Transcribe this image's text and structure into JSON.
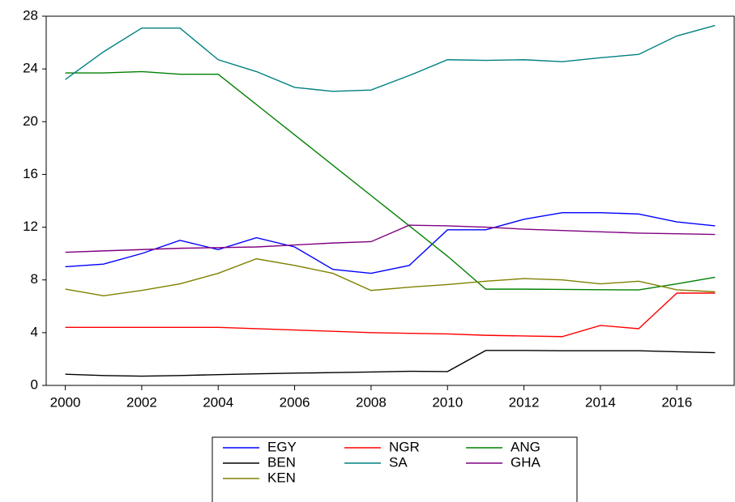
{
  "chart_data": {
    "type": "line",
    "x": [
      2000,
      2001,
      2002,
      2003,
      2004,
      2005,
      2006,
      2007,
      2008,
      2009,
      2010,
      2011,
      2012,
      2013,
      2014,
      2015,
      2016,
      2017
    ],
    "xlim": [
      1999.5,
      2017.5
    ],
    "xticks": [
      2000,
      2002,
      2004,
      2006,
      2008,
      2010,
      2012,
      2014,
      2016
    ],
    "ylim": [
      0,
      28
    ],
    "yticks": [
      0,
      4,
      8,
      12,
      16,
      20,
      24,
      28
    ],
    "grid": false,
    "series": [
      {
        "name": "EGY",
        "color": "#0000ff",
        "values": [
          9.0,
          9.2,
          10.0,
          11.0,
          10.3,
          11.2,
          10.5,
          8.8,
          8.5,
          9.1,
          11.8,
          11.8,
          12.6,
          13.1,
          13.1,
          13.0,
          12.4,
          12.1
        ]
      },
      {
        "name": "NGR",
        "color": "#ff0000",
        "values": [
          4.4,
          4.4,
          4.4,
          4.4,
          4.4,
          4.3,
          4.2,
          4.1,
          4.0,
          3.95,
          3.9,
          3.8,
          3.75,
          3.7,
          4.55,
          4.3,
          7.0,
          7.0
        ]
      },
      {
        "name": "ANG",
        "color": "#008000",
        "values": [
          23.7,
          23.7,
          23.8,
          23.6,
          23.6,
          21.3,
          19.0,
          16.7,
          14.4,
          12.1,
          9.8,
          7.3,
          7.3,
          7.28,
          7.26,
          7.24,
          7.7,
          8.2
        ]
      },
      {
        "name": "BEN",
        "color": "#000000",
        "values": [
          0.85,
          0.75,
          0.7,
          0.75,
          0.82,
          0.88,
          0.93,
          0.97,
          1.02,
          1.07,
          1.05,
          2.65,
          2.65,
          2.63,
          2.63,
          2.63,
          2.55,
          2.48
        ]
      },
      {
        "name": "SA",
        "color": "#008080",
        "values": [
          23.2,
          25.3,
          27.1,
          27.1,
          24.7,
          23.8,
          22.6,
          22.3,
          22.4,
          23.5,
          24.7,
          24.65,
          24.7,
          24.55,
          24.85,
          25.1,
          26.5,
          27.3
        ]
      },
      {
        "name": "GHA",
        "color": "#800080",
        "values": [
          10.1,
          10.2,
          10.3,
          10.4,
          10.45,
          10.5,
          10.65,
          10.8,
          10.9,
          12.15,
          12.1,
          12.0,
          11.85,
          11.75,
          11.65,
          11.55,
          11.5,
          11.45
        ]
      },
      {
        "name": "KEN",
        "color": "#808000",
        "values": [
          7.3,
          6.8,
          7.2,
          7.7,
          8.5,
          9.6,
          9.1,
          8.5,
          7.2,
          7.45,
          7.65,
          7.9,
          8.1,
          8.0,
          7.7,
          7.9,
          7.25,
          7.1
        ]
      }
    ]
  }
}
